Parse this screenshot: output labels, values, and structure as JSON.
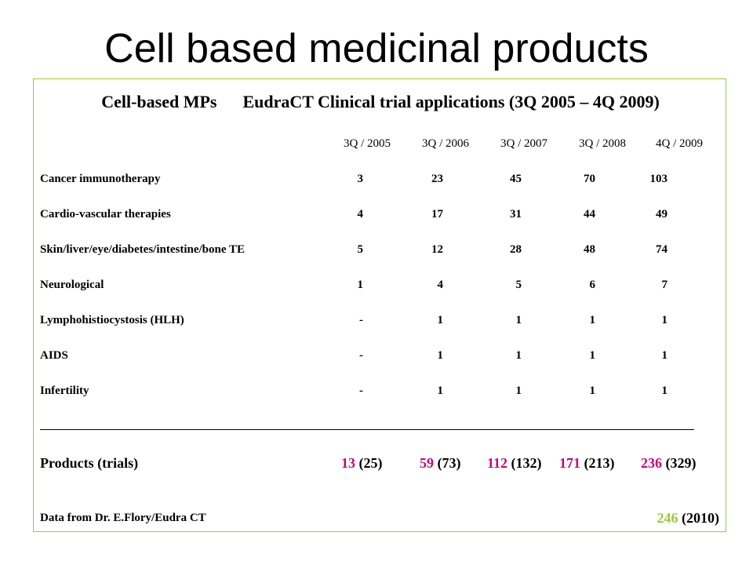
{
  "title": "Cell based medicinal products",
  "table": {
    "header_left": "Cell-based MPs",
    "header_right": "EudraCT Clinical trial applications (3Q 2005 – 4Q 2009)",
    "columns": [
      "3Q / 2005",
      "3Q / 2006",
      "3Q / 2007",
      "3Q / 2008",
      "4Q / 2009"
    ],
    "rows": [
      {
        "label": "Cancer immunotherapy",
        "values": [
          "3",
          "23",
          "45",
          "70",
          "103"
        ]
      },
      {
        "label": "Cardio-vascular therapies",
        "values": [
          "4",
          "17",
          "31",
          "44",
          "49"
        ]
      },
      {
        "label": "Skin/liver/eye/diabetes/intestine/bone TE",
        "values": [
          "5",
          "12",
          "28",
          "48",
          "74"
        ]
      },
      {
        "label": "Neurological",
        "values": [
          "1",
          "4",
          "5",
          "6",
          "7"
        ]
      },
      {
        "label": "Lymphohistiocystosis (HLH)",
        "values": [
          "-",
          "1",
          "1",
          "1",
          "1"
        ]
      },
      {
        "label": "AIDS",
        "values": [
          "-",
          "1",
          "1",
          "1",
          "1"
        ]
      },
      {
        "label": "Infertility",
        "values": [
          "-",
          "1",
          "1",
          "1",
          "1"
        ]
      }
    ],
    "totals": {
      "label": "Products (trials)",
      "products": [
        "13",
        "59",
        "112",
        "171",
        "236"
      ],
      "trials": [
        "(25)",
        "(73)",
        "(132)",
        "(213)",
        "(329)"
      ]
    },
    "source": "Data from Dr. E.Flory/Eudra CT",
    "note_products": "246",
    "note_year": "(2010)"
  },
  "colors": {
    "accent_green": "#9acd32",
    "accent_magenta": "#cc0080"
  }
}
